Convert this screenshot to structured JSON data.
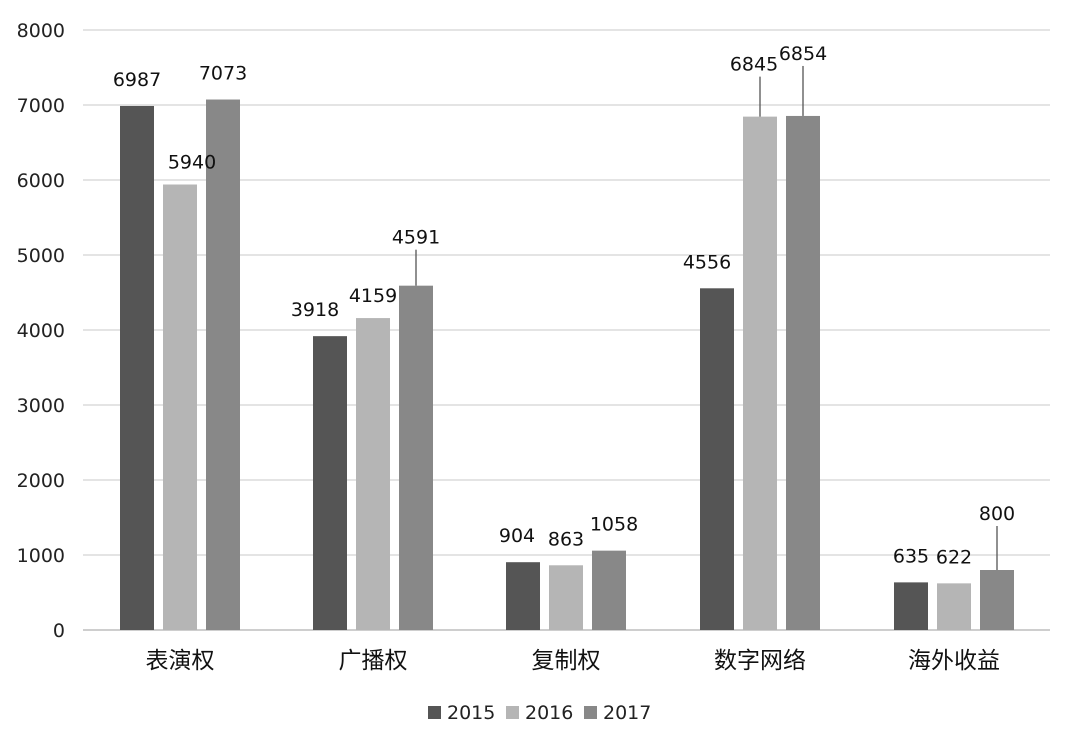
{
  "chart_data": {
    "type": "bar",
    "categories": [
      "表演权",
      "广播权",
      "复制权",
      "数字网络",
      "海外收益"
    ],
    "series": [
      {
        "name": "2015",
        "color": "#555555",
        "values": [
          6987,
          3918,
          904,
          4556,
          635
        ]
      },
      {
        "name": "2016",
        "color": "#b5b5b5",
        "values": [
          5940,
          4159,
          863,
          6845,
          622
        ]
      },
      {
        "name": "2017",
        "color": "#888888",
        "values": [
          7073,
          4591,
          1058,
          6854,
          800
        ]
      }
    ],
    "y_ticks": [
      "0",
      "1000",
      "2000",
      "3000",
      "4000",
      "5000",
      "6000",
      "7000",
      "8000"
    ],
    "ylim": [
      0,
      8000
    ],
    "grid": true,
    "legend_position": "bottom"
  }
}
